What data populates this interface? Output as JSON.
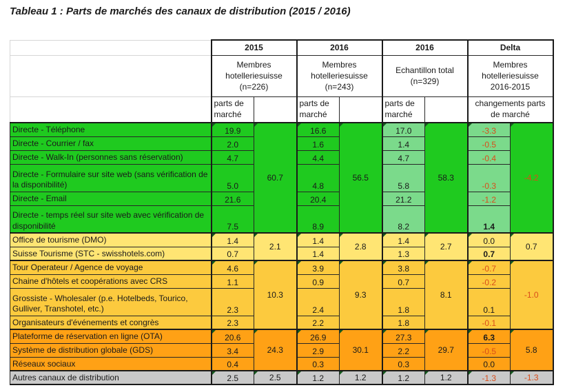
{
  "title": "Tableau 1 : Parts de marchés des canaux de distribution (2015 / 2016)",
  "colors": {
    "section_direct": "#1fca1f",
    "section_direct_light": "#7bda8b",
    "section_tourism": "#ffe573",
    "section_intermediaries": "#fcca3e",
    "section_online": "#ffa115",
    "section_other": "#c9c9c9",
    "negative_text": "#d94d1a"
  },
  "header": {
    "groups": [
      {
        "year": "2015",
        "subtitle": "Membres\nhotelleriesuisse\n(n=226)",
        "measure": "parts de\nmarché"
      },
      {
        "year": "2016",
        "subtitle": "Membres\nhotelleriesuisse\n(n=243)",
        "measure": "parts de\nmarché"
      },
      {
        "year": "2016",
        "subtitle": "Echantillon total\n(n=329)",
        "measure": "parts de\nmarché"
      },
      {
        "year": "Delta",
        "subtitle": "Membres\nhotelleriesuisse\n2016-2015",
        "measure": "changements parts\nde marché"
      }
    ]
  },
  "sections": [
    {
      "name": "direct-channels",
      "rows": [
        {
          "label": "Directe - Téléphone",
          "values": [
            "19.9",
            "16.6",
            "17.0",
            "-3.3"
          ]
        },
        {
          "label": "Directe - Courrier / fax",
          "values": [
            "2.0",
            "1.6",
            "1.4",
            "-0.5"
          ]
        },
        {
          "label": "Directe - Walk-In (personnes sans réservation)",
          "values": [
            "4.7",
            "4.4",
            "4.7",
            "-0.4"
          ]
        },
        {
          "label": "Directe - Formulaire sur site web (sans vérification de la disponibilité)",
          "values": [
            "5.0",
            "4.8",
            "5.8",
            "-0.3"
          ]
        },
        {
          "label": "Directe - Email",
          "values": [
            "21.6",
            "20.4",
            "21.2",
            "-1.2"
          ]
        },
        {
          "label": "Directe - temps réel sur site web avec vérification de disponibilité",
          "values": [
            "7.5",
            "8.9",
            "8.2",
            "1.4"
          ]
        }
      ],
      "totals": [
        "60.7",
        "56.5",
        "58.3",
        "-4.2"
      ]
    },
    {
      "name": "tourism-organisations",
      "rows": [
        {
          "label": "Office de tourisme (DMO)",
          "values": [
            "1.4",
            "1.4",
            "1.4",
            "0.0"
          ]
        },
        {
          "label": "Suisse Tourisme (STC - swisshotels.com)",
          "values": [
            "0.7",
            "1.4",
            "1.3",
            "0.7"
          ]
        }
      ],
      "totals": [
        "2.1",
        "2.8",
        "2.7",
        "0.7"
      ]
    },
    {
      "name": "intermediaries",
      "rows": [
        {
          "label": "Tour Operateur / Agence de voyage",
          "values": [
            "4.6",
            "3.9",
            "3.8",
            "-0.7"
          ]
        },
        {
          "label": "Chaine d'hôtels et coopérations avec CRS",
          "values": [
            "1.1",
            "0.9",
            "0.7",
            "-0.2"
          ]
        },
        {
          "label": "Grossiste - Wholesaler (p.e. Hotelbeds, Tourico, Gulliver, Transhotel, etc.)",
          "values": [
            "2.3",
            "2.4",
            "1.8",
            "0.1"
          ]
        },
        {
          "label": "Organisateurs d'événements et congrès",
          "values": [
            "2.3",
            "2.2",
            "1.8",
            "-0.1"
          ]
        }
      ],
      "totals": [
        "10.3",
        "9.3",
        "8.1",
        "-1.0"
      ]
    },
    {
      "name": "online-distribution",
      "rows": [
        {
          "label": "Plateforme de réservation en ligne  (OTA)",
          "values": [
            "20.6",
            "26.9",
            "27.3",
            "6.3"
          ]
        },
        {
          "label": "Système de distribution globale (GDS)",
          "values": [
            "3.4",
            "2.9",
            "2.2",
            "-0.5"
          ]
        },
        {
          "label": "Réseaux sociaux",
          "values": [
            "0.4",
            "0.3",
            "0.3",
            "0.0"
          ]
        }
      ],
      "totals": [
        "24.3",
        "30.1",
        "29.7",
        "5.8"
      ]
    },
    {
      "name": "other-channels",
      "rows": [
        {
          "label": "Autres canaux de distribution",
          "values": [
            "2.5",
            "1.2",
            "1.2",
            "-1.3"
          ]
        }
      ],
      "totals": [
        "2.5",
        "1.2",
        "1.2",
        "-1.3"
      ]
    }
  ]
}
